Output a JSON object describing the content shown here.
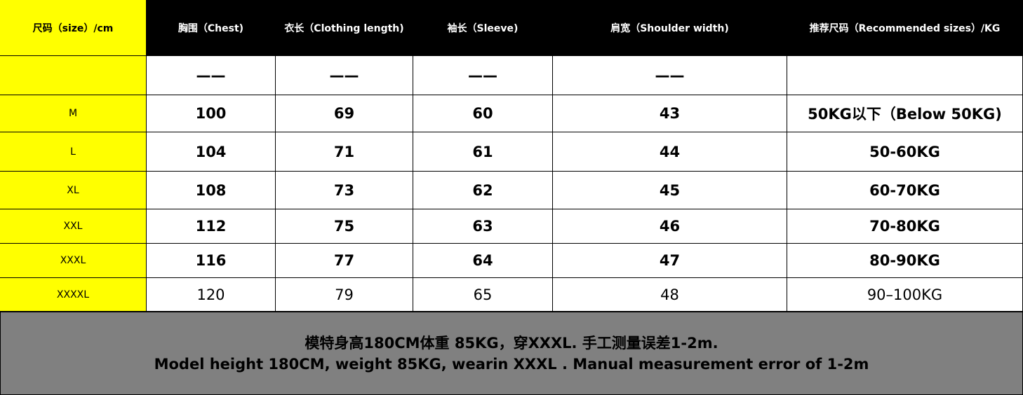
{
  "table": {
    "header": [
      "尺码（size）/cm",
      "胸围（Chest)",
      "衣长（Clothing length)",
      "袖长（Sleeve)",
      "肩宽（Shoulder width)",
      "推荐尺码（Recommended sizes）/KG"
    ],
    "dash_row": [
      "——",
      "——",
      "——",
      "——"
    ],
    "rows": [
      [
        "M",
        100,
        69,
        60,
        43,
        "50KG以下（Below 50KG)"
      ],
      [
        "L",
        104,
        71,
        61,
        44,
        "50-60KG"
      ],
      [
        "XL",
        108,
        73,
        62,
        45,
        "60-70KG"
      ],
      [
        "XXL",
        112,
        75,
        63,
        46,
        "70-80KG"
      ],
      [
        "XXXL",
        116,
        77,
        64,
        47,
        "80-90KG"
      ],
      [
        "XXXXL",
        120,
        79,
        65,
        48,
        "90–100KG"
      ]
    ]
  },
  "footer": {
    "lines": [
      "模特身高180CM体重 85KG，穿XXXL. 手工测量误差1-2m.",
      "Model height 180CM, weight 85KG, wearin XXXL . Manual measurement error of 1-2m"
    ]
  }
}
